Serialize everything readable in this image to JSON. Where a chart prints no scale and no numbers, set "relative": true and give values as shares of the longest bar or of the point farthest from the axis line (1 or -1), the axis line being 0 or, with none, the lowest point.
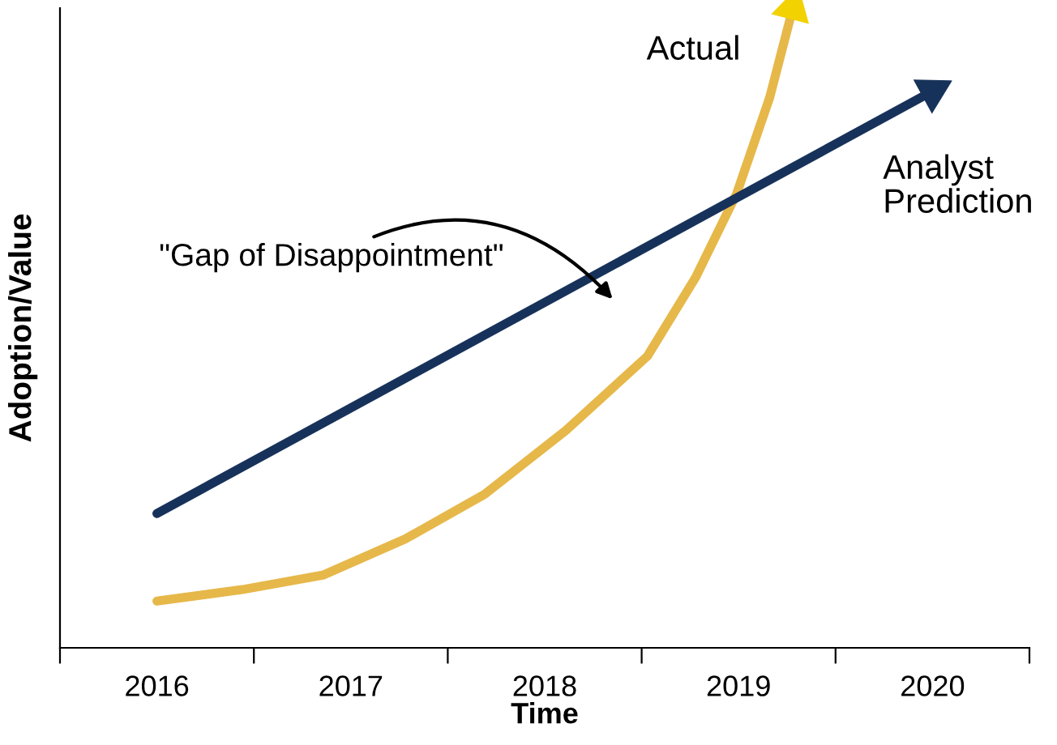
{
  "chart_data": {
    "type": "line",
    "relative": true,
    "xlabel": "Time",
    "ylabel": "Adoption/Value",
    "xlim": [
      2015.5,
      2020.5
    ],
    "xticks": [
      {
        "value": 2015.5,
        "label": null
      },
      {
        "value": 2016,
        "label": "2016"
      },
      {
        "value": 2016.5,
        "label": null
      },
      {
        "value": 2017,
        "label": "2017"
      },
      {
        "value": 2017.5,
        "label": null
      },
      {
        "value": 2018,
        "label": "2018"
      },
      {
        "value": 2018.5,
        "label": null
      },
      {
        "value": 2019,
        "label": "2019"
      },
      {
        "value": 2019.5,
        "label": null
      },
      {
        "value": 2020,
        "label": "2020"
      },
      {
        "value": 2020.5,
        "label": null
      }
    ],
    "series": [
      {
        "name": "Actual",
        "color": "#e6b84a",
        "x": [
          2016.0,
          2016.44,
          2016.86,
          2017.28,
          2017.69,
          2018.11,
          2018.53,
          2018.78,
          2018.99,
          2019.16,
          2019.28
        ],
        "values": [
          0.073,
          0.091,
          0.114,
          0.17,
          0.24,
          0.34,
          0.456,
          0.58,
          0.71,
          0.86,
          1.0
        ]
      },
      {
        "name": "Analyst Prediction",
        "color": "#17325a",
        "x": [
          2016.0,
          2020.0
        ],
        "values": [
          0.21,
          0.87
        ]
      }
    ],
    "annotations": [
      "\"Gap of Disappointment\""
    ],
    "grid": false,
    "legend": false,
    "line_style": "solid",
    "tick_labels": "x"
  }
}
